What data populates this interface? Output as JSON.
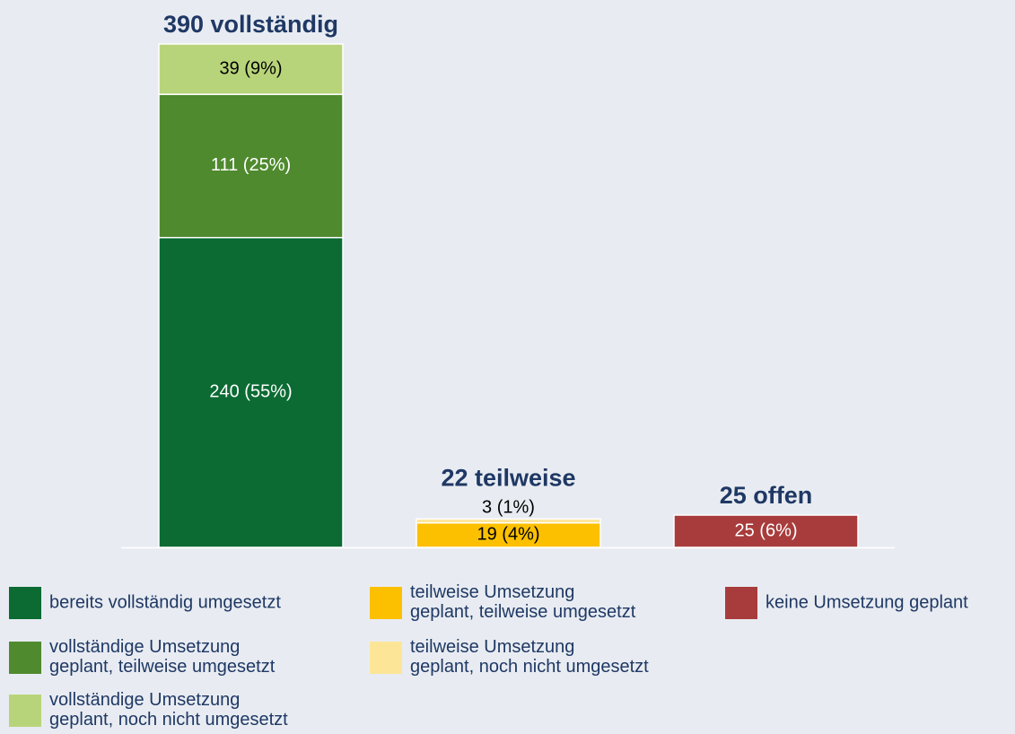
{
  "chart_data": {
    "type": "stacked-bar",
    "categories": [
      "390 vollständig",
      "22 teilweise",
      "25 offen"
    ],
    "ylim": [
      0,
      390
    ],
    "series": [
      {
        "name": "bereits vollständig umgesetzt",
        "color": "#0b6b33",
        "values": [
          240,
          null,
          null
        ],
        "value_labels": [
          "240 (55%)",
          null,
          null
        ]
      },
      {
        "name": "vollständige Umsetzung geplant, teilweise umgesetzt",
        "color": "#4f8a2e",
        "values": [
          111,
          null,
          null
        ],
        "value_labels": [
          "111 (25%)",
          null,
          null
        ]
      },
      {
        "name": "vollständige Umsetzung geplant, noch nicht umgesetzt",
        "color": "#b8d47a",
        "values": [
          39,
          null,
          null
        ],
        "value_labels": [
          "39 (9%)",
          null,
          null
        ]
      },
      {
        "name": "teilweise Umsetzung geplant, teilweise umgesetzt",
        "color": "#fcc000",
        "values": [
          null,
          19,
          null
        ],
        "value_labels": [
          null,
          "19 (4%)",
          null
        ]
      },
      {
        "name": "teilweise Umsetzung geplant, noch nicht umgesetzt",
        "color": "#fde598",
        "values": [
          null,
          3,
          null
        ],
        "value_labels": [
          null,
          "3 (1%)",
          null
        ]
      },
      {
        "name": "keine Umsetzung geplant",
        "color": "#a83c3c",
        "values": [
          null,
          null,
          25
        ],
        "value_labels": [
          null,
          null,
          "25 (6%)"
        ]
      }
    ]
  }
}
